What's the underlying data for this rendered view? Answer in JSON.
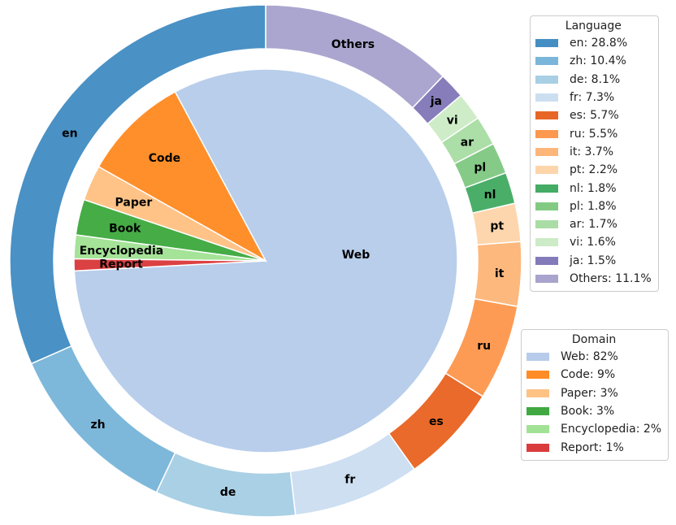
{
  "chart_data": {
    "type": "pie",
    "subtype": "nested-donut",
    "rings": [
      {
        "name": "Domain",
        "position": "inner",
        "categories": [
          "Web",
          "Code",
          "Paper",
          "Book",
          "Encyclopedia",
          "Report"
        ],
        "values": [
          82,
          9,
          3,
          3,
          2,
          1
        ],
        "colors": [
          "#aec7e8",
          "#ff7f0e",
          "#ffbb78",
          "#2ca02c",
          "#98df8a",
          "#d62728"
        ]
      },
      {
        "name": "Language",
        "position": "outer",
        "categories": [
          "en",
          "zh",
          "de",
          "fr",
          "es",
          "ru",
          "it",
          "pt",
          "nl",
          "pl",
          "ar",
          "vi",
          "ja",
          "Others"
        ],
        "values": [
          28.8,
          10.4,
          8.1,
          7.3,
          5.7,
          5.5,
          3.7,
          2.2,
          1.8,
          1.8,
          1.7,
          1.6,
          1.5,
          11.1
        ],
        "colors": [
          "#3182bd",
          "#6baed6",
          "#9ecae1",
          "#c6dbef",
          "#e6550d",
          "#fd8d3c",
          "#fdae6b",
          "#fdd0a2",
          "#31a354",
          "#74c476",
          "#a1d99b",
          "#c7e9c0",
          "#756bb1",
          "#9e9ac8"
        ]
      }
    ],
    "legends": [
      {
        "title": "Language",
        "placement": "top-right",
        "entries": [
          "en: 28.8%",
          "zh: 10.4%",
          "de: 8.1%",
          "fr: 7.3%",
          "es: 5.7%",
          "ru: 5.5%",
          "it: 3.7%",
          "pt: 2.2%",
          "nl: 1.8%",
          "pl: 1.8%",
          "ar: 1.7%",
          "vi: 1.6%",
          "ja: 1.5%",
          "Others: 11.1%"
        ]
      },
      {
        "title": "Domain",
        "placement": "right",
        "entries": [
          "Web: 82%",
          "Code: 9%",
          "Paper: 3%",
          "Book: 3%",
          "Encyclopedia: 2%",
          "Report: 1%"
        ]
      }
    ]
  }
}
